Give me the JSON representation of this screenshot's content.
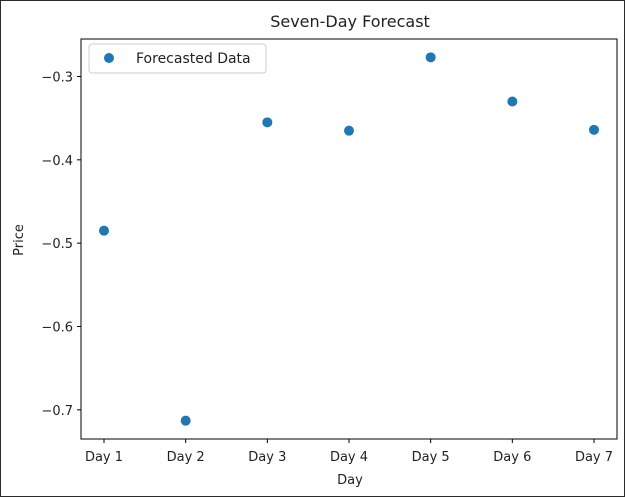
{
  "chart_data": {
    "type": "scatter",
    "title": "Seven-Day Forecast",
    "xlabel": "Day",
    "ylabel": "Price",
    "categories": [
      "Day 1",
      "Day 2",
      "Day 3",
      "Day 4",
      "Day 5",
      "Day 6",
      "Day 7"
    ],
    "series": [
      {
        "name": "Forecasted Data",
        "color": "#1f77b4",
        "values": [
          -0.485,
          -0.713,
          -0.355,
          -0.365,
          -0.277,
          -0.33,
          -0.364
        ]
      }
    ],
    "yticks": [
      "−0.3",
      "−0.4",
      "−0.5",
      "−0.6",
      "−0.7"
    ],
    "ytick_values": [
      -0.3,
      -0.4,
      -0.5,
      -0.6,
      -0.7
    ],
    "ylim": [
      -0.735,
      -0.255
    ],
    "grid": false,
    "legend": "top-left"
  }
}
